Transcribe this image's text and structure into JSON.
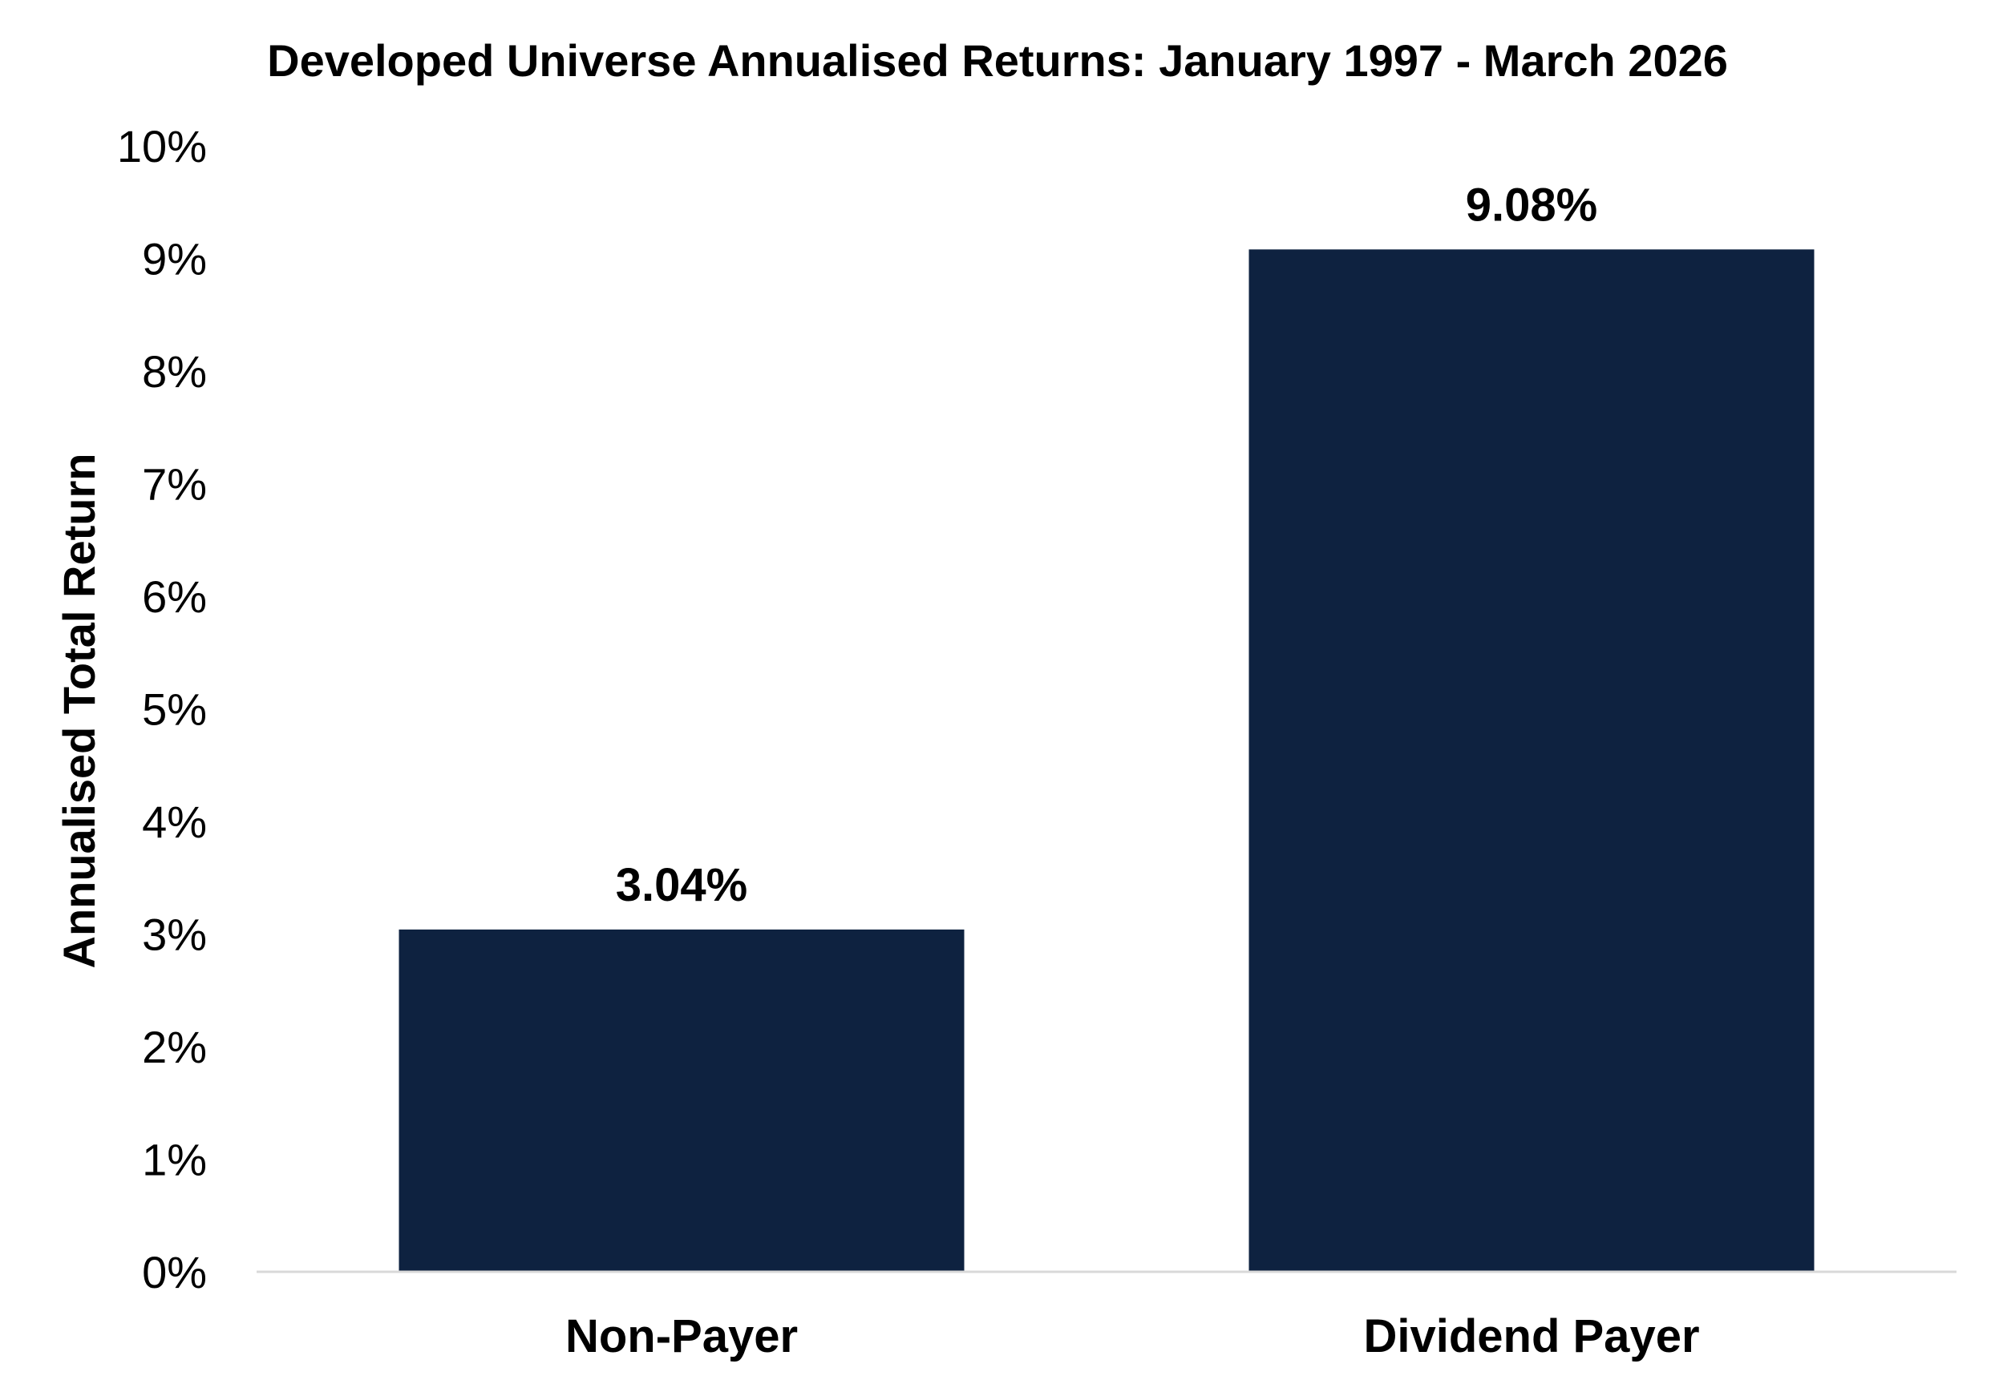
{
  "chart_data": {
    "type": "bar",
    "title": "Developed Universe Annualised Returns: January 1997 - March 2026",
    "xlabel": "",
    "ylabel": "Annualised Total Return",
    "categories": [
      "Non-Payer",
      "Dividend Payer"
    ],
    "values": [
      3.04,
      9.08
    ],
    "data_labels": [
      "3.04%",
      "9.08%"
    ],
    "ylim": [
      0,
      10
    ],
    "yticks": [
      0,
      1,
      2,
      3,
      4,
      5,
      6,
      7,
      8,
      9,
      10
    ],
    "ytick_labels": [
      "0%",
      "1%",
      "2%",
      "3%",
      "4%",
      "5%",
      "6%",
      "7%",
      "8%",
      "9%",
      "10%"
    ],
    "grid": false,
    "legend": "none",
    "bar_color": "#0e2240",
    "axis_color": "#d9d9d9"
  }
}
